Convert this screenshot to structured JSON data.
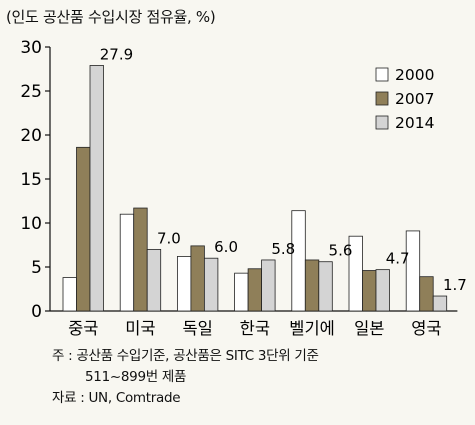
{
  "chart_data": {
    "type": "bar",
    "title": "(인도 공산품 수입시장 점유율, %)",
    "categories": [
      "중국",
      "미국",
      "독일",
      "한국",
      "벨기에",
      "일본",
      "영국"
    ],
    "series": [
      {
        "name": "2000",
        "values": [
          3.8,
          11.0,
          6.2,
          4.3,
          11.4,
          8.5,
          9.1
        ],
        "color": "#ffffff"
      },
      {
        "name": "2007",
        "values": [
          18.6,
          11.7,
          7.4,
          4.8,
          5.8,
          4.6,
          3.9
        ],
        "color": "#8f7f59"
      },
      {
        "name": "2014",
        "values": [
          27.9,
          7.0,
          6.0,
          5.8,
          5.6,
          4.7,
          1.7
        ],
        "color": "#d4d4d4"
      }
    ],
    "data_labels": [
      "27.9",
      "7.0",
      "6.0",
      "5.8",
      "5.6",
      "4.7",
      "1.7"
    ],
    "ylim": [
      0,
      30
    ],
    "yticks": [
      0,
      5,
      10,
      15,
      20,
      25,
      30
    ],
    "xlabel": "",
    "ylabel": "",
    "grid": false,
    "legend_position": "top-right"
  },
  "notes": {
    "line1": "주 : 공산품 수입기준, 공산품은 SITC 3단위 기준",
    "line2": "511~899번 제품",
    "line3": "자료 : UN, Comtrade"
  }
}
